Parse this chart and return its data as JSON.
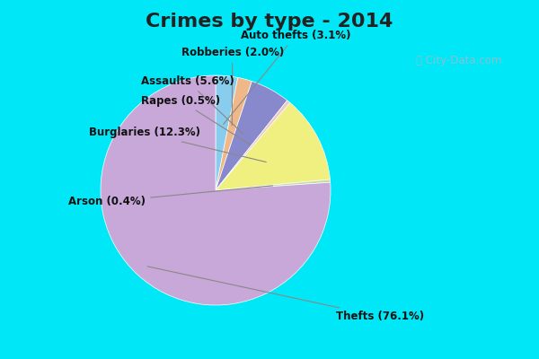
{
  "title": "Crimes by type - 2014",
  "order_labels": [
    "Auto thefts",
    "Robberies",
    "Assaults",
    "Rapes",
    "Burglaries",
    "Arson",
    "Thefts"
  ],
  "order_values": [
    3.1,
    2.0,
    5.6,
    0.5,
    12.3,
    0.4,
    76.1
  ],
  "order_colors": [
    "#88ccee",
    "#f0b888",
    "#8888cc",
    "#f0c8c8",
    "#f0f080",
    "#c8dca0",
    "#c8a8d8"
  ],
  "label_texts": [
    "Auto thefts (3.1%)",
    "Robberies (2.0%)",
    "Assaults (5.6%)",
    "Rapes (0.5%)",
    "Burglaries (12.3%)",
    "Arson (0.4%)",
    "Thefts (76.1%)"
  ],
  "background_top": "#00e8f8",
  "background_main": "#d0ecd8",
  "title_fontsize": 16,
  "title_color": "#222222",
  "watermark": "ⓘ City-Data.com",
  "top_bar_height": 0.12,
  "bottom_bar_height": 0.06
}
